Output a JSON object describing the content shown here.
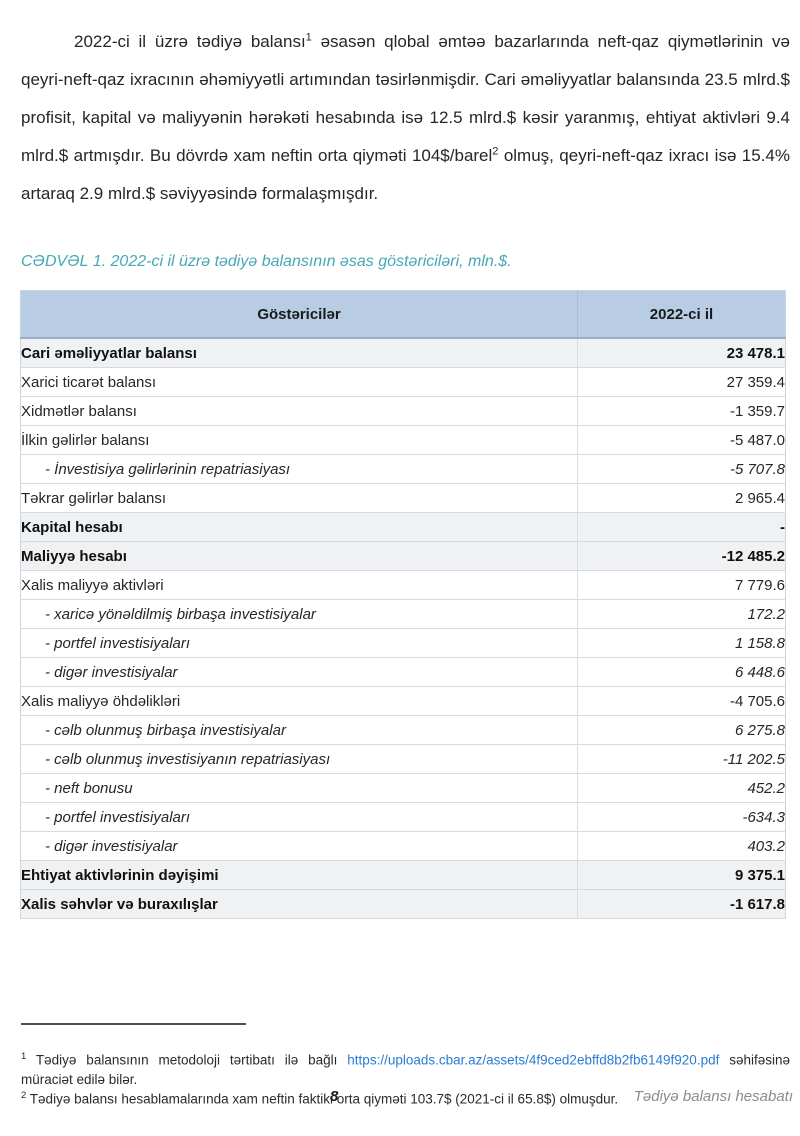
{
  "document": {
    "intro_paragraph": {
      "part1": "2022-ci il üzrə tədiyə balansı",
      "footnote_ref1": "1",
      "part2": " əsasən qlobal əmtəə bazarlarında neft-qaz qiymətlərinin və qeyri-neft-qaz ixracının əhəmiyyətli artımından təsirlənmişdir. Cari əməliyyatlar balansında 23.5 mlrd.$ profisit, kapital və maliyyənin hərəkəti hesabında isə 12.5 mlrd.$ kəsir yaranmış, ehtiyat aktivləri 9.4 mlrd.$ artmışdır. Bu dövrdə xam neftin orta qiyməti 104$/barel",
      "footnote_ref2": "2",
      "part3": " olmuş, qeyri-neft-qaz ixracı isə 15.4% artaraq 2.9 mlrd.$ səviyyəsində formalaşmışdır."
    },
    "table_caption": "CƏDVƏL 1. 2022-ci il üzrə tədiyə balansının əsas göstəriciləri, mln.$."
  },
  "table": {
    "headers": [
      "Göstəricilər",
      "2022-ci il"
    ],
    "rows": [
      {
        "label": "Cari əməliyyatlar balansı",
        "value": "23 478.1",
        "style": "bold"
      },
      {
        "label": "Xarici ticarət balansı",
        "value": "27 359.4",
        "style": "normal"
      },
      {
        "label": "Xidmətlər balansı",
        "value": "-1 359.7",
        "style": "normal"
      },
      {
        "label": "İlkin gəlirlər balansı",
        "value": "-5 487.0",
        "style": "normal"
      },
      {
        "label": "- İnvestisiya gəlirlərinin repatriasiyası",
        "value": "-5 707.8",
        "style": "sub"
      },
      {
        "label": "Təkrar gəlirlər balansı",
        "value": "2 965.4",
        "style": "normal"
      },
      {
        "label": "Kapital hesabı",
        "value": "-",
        "style": "bold"
      },
      {
        "label": "Maliyyə hesabı",
        "value": "-12 485.2",
        "style": "bold"
      },
      {
        "label": "Xalis maliyyə aktivləri",
        "value": "7 779.6",
        "style": "normal"
      },
      {
        "label": "- xaricə yönəldilmiş birbaşa investisiyalar",
        "value": "172.2",
        "style": "sub"
      },
      {
        "label": "- portfel investisiyaları",
        "value": "1 158.8",
        "style": "sub"
      },
      {
        "label": "- digər investisiyalar",
        "value": "6 448.6",
        "style": "sub"
      },
      {
        "label": "Xalis maliyyə öhdəlikləri",
        "value": "-4 705.6",
        "style": "normal"
      },
      {
        "label": "- cəlb olunmuş birbaşa investisiyalar",
        "value": "6 275.8",
        "style": "sub"
      },
      {
        "label": "- cəlb olunmuş investisiyanın repatriasiyası",
        "value": "-11 202.5",
        "style": "sub"
      },
      {
        "label": "- neft bonusu",
        "value": "452.2",
        "style": "sub"
      },
      {
        "label": "- portfel investisiyaları",
        "value": "-634.3",
        "style": "sub"
      },
      {
        "label": "- digər investisiyalar",
        "value": "403.2",
        "style": "sub"
      },
      {
        "label": "Ehtiyat aktivlərinin dəyişimi",
        "value": "9 375.1",
        "style": "bold"
      },
      {
        "label": "Xalis səhvlər və buraxılışlar",
        "value": "-1 617.8",
        "style": "bold"
      }
    ]
  },
  "footnotes": {
    "fn1": {
      "marker": "1",
      "text_before_link": " Tədiyə balansının metodoloji tərtibatı ilə bağlı ",
      "link_text": "https://uploads.cbar.az/assets/4f9ced2ebffd8b2fb6149f920.pdf",
      "text_after_link": " səhifəsinə müraciət edilə bilər."
    },
    "fn2": {
      "marker": "2",
      "text": " Tədiyə balansı hesablamalarında xam neftin faktiki orta qiyməti 103.7$ (2021-ci il 65.8$) olmuşdur."
    }
  },
  "footer": {
    "page_number": "8",
    "report_title": "Tədiyə balansı hesabatı"
  },
  "colors": {
    "table_header_bg": "#b8cce4",
    "highlight_row_bg": "#f0f1f2",
    "caption_text": "#46a8b4",
    "link_text": "#2b7bd4",
    "footer_text": "#8c8c8c"
  }
}
